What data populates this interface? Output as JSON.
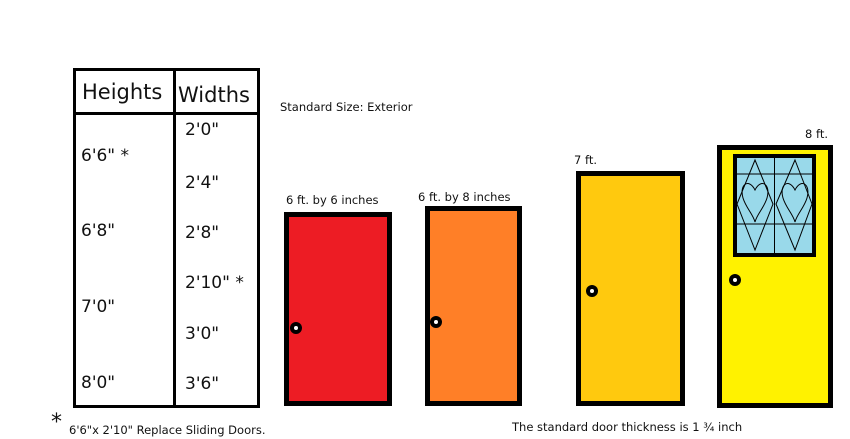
{
  "table": {
    "headers": {
      "heights": "Heights",
      "widths": "Widths"
    },
    "heights": [
      "6'6\"  *",
      "6'8\"",
      "7'0\"",
      "8'0\""
    ],
    "widths": [
      "2'0\"",
      "2'4\"",
      "2'8\"",
      "2'10\" *",
      "3'0\"",
      "3'6\""
    ]
  },
  "subtitle": "Standard Size: Exterior",
  "doors": [
    {
      "label": "6 ft. by 6 inches",
      "color": "#ed1c24"
    },
    {
      "label": "6 ft. by 8 inches",
      "color": "#ff7f27"
    },
    {
      "label": "7 ft.",
      "color": "#ffc90e"
    },
    {
      "label": "8 ft.",
      "color": "#fff200",
      "window_color": "#99d9ea"
    }
  ],
  "footnote": {
    "mark": "*",
    "text": "6'6\"x 2'10\" Replace Sliding Doors."
  },
  "thickness_note": "The standard door thickness is 1 ¾ inch"
}
